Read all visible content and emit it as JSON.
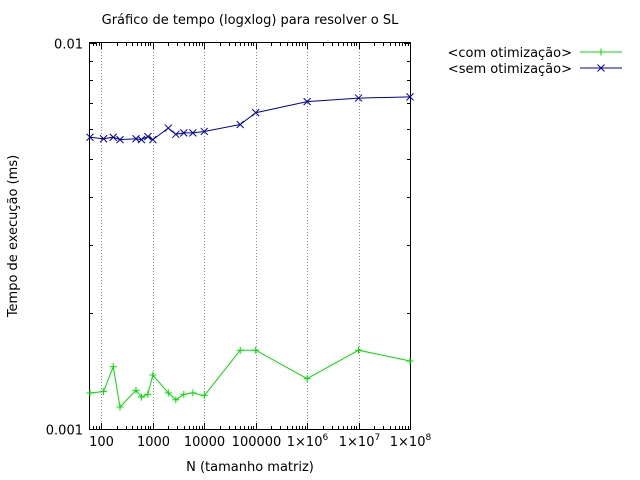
{
  "chart_data": {
    "type": "line",
    "title": "Gráfico de tempo (logxlog) para resolver o SL",
    "xlabel": "N (tamanho matriz)",
    "ylabel": "Tempo de execução (ms)",
    "xscale": "log",
    "yscale": "log",
    "xlim": [
      60,
      100000000
    ],
    "ylim": [
      0.001,
      0.01
    ],
    "grid": "x-major dotted",
    "legend_position": "outside top-right",
    "x_ticks": [
      {
        "value": 100,
        "label": "100",
        "exp": ""
      },
      {
        "value": 1000,
        "label": "1000",
        "exp": ""
      },
      {
        "value": 10000,
        "label": "10000",
        "exp": ""
      },
      {
        "value": 100000,
        "label": "100000",
        "exp": ""
      },
      {
        "value": 1000000,
        "label": "1×10",
        "exp": "6"
      },
      {
        "value": 10000000,
        "label": "1×10",
        "exp": "7"
      },
      {
        "value": 100000000,
        "label": "1×10",
        "exp": "8"
      }
    ],
    "y_ticks": [
      {
        "value": 0.001,
        "label": "0.001"
      },
      {
        "value": 0.01,
        "label": "0.01"
      }
    ],
    "series": [
      {
        "name": "<com otimização>",
        "color": "#00dd00",
        "marker": "plus",
        "points": [
          [
            60,
            0.00124
          ],
          [
            110,
            0.00125
          ],
          [
            170,
            0.00145
          ],
          [
            230,
            0.00114
          ],
          [
            470,
            0.00126
          ],
          [
            600,
            0.00121
          ],
          [
            800,
            0.00123
          ],
          [
            1000,
            0.00138
          ],
          [
            2000,
            0.00124
          ],
          [
            2800,
            0.00119
          ],
          [
            4000,
            0.00123
          ],
          [
            6000,
            0.00124
          ],
          [
            10000,
            0.00122
          ],
          [
            50000,
            0.0016
          ],
          [
            100000,
            0.0016
          ],
          [
            1000000,
            0.00135
          ],
          [
            10000000,
            0.0016
          ],
          [
            100000000,
            0.0015
          ]
        ]
      },
      {
        "name": "<sem otimização>",
        "color": "#0000a0",
        "marker": "cross",
        "points": [
          [
            60,
            0.0057
          ],
          [
            110,
            0.00565
          ],
          [
            170,
            0.0057
          ],
          [
            230,
            0.00562
          ],
          [
            470,
            0.00565
          ],
          [
            600,
            0.00562
          ],
          [
            800,
            0.00572
          ],
          [
            1000,
            0.00562
          ],
          [
            2000,
            0.00602
          ],
          [
            2800,
            0.0058
          ],
          [
            4000,
            0.00585
          ],
          [
            6000,
            0.00585
          ],
          [
            10000,
            0.0059
          ],
          [
            50000,
            0.00615
          ],
          [
            100000,
            0.0066
          ],
          [
            1000000,
            0.00705
          ],
          [
            10000000,
            0.0072
          ],
          [
            100000000,
            0.00725
          ]
        ]
      }
    ]
  }
}
